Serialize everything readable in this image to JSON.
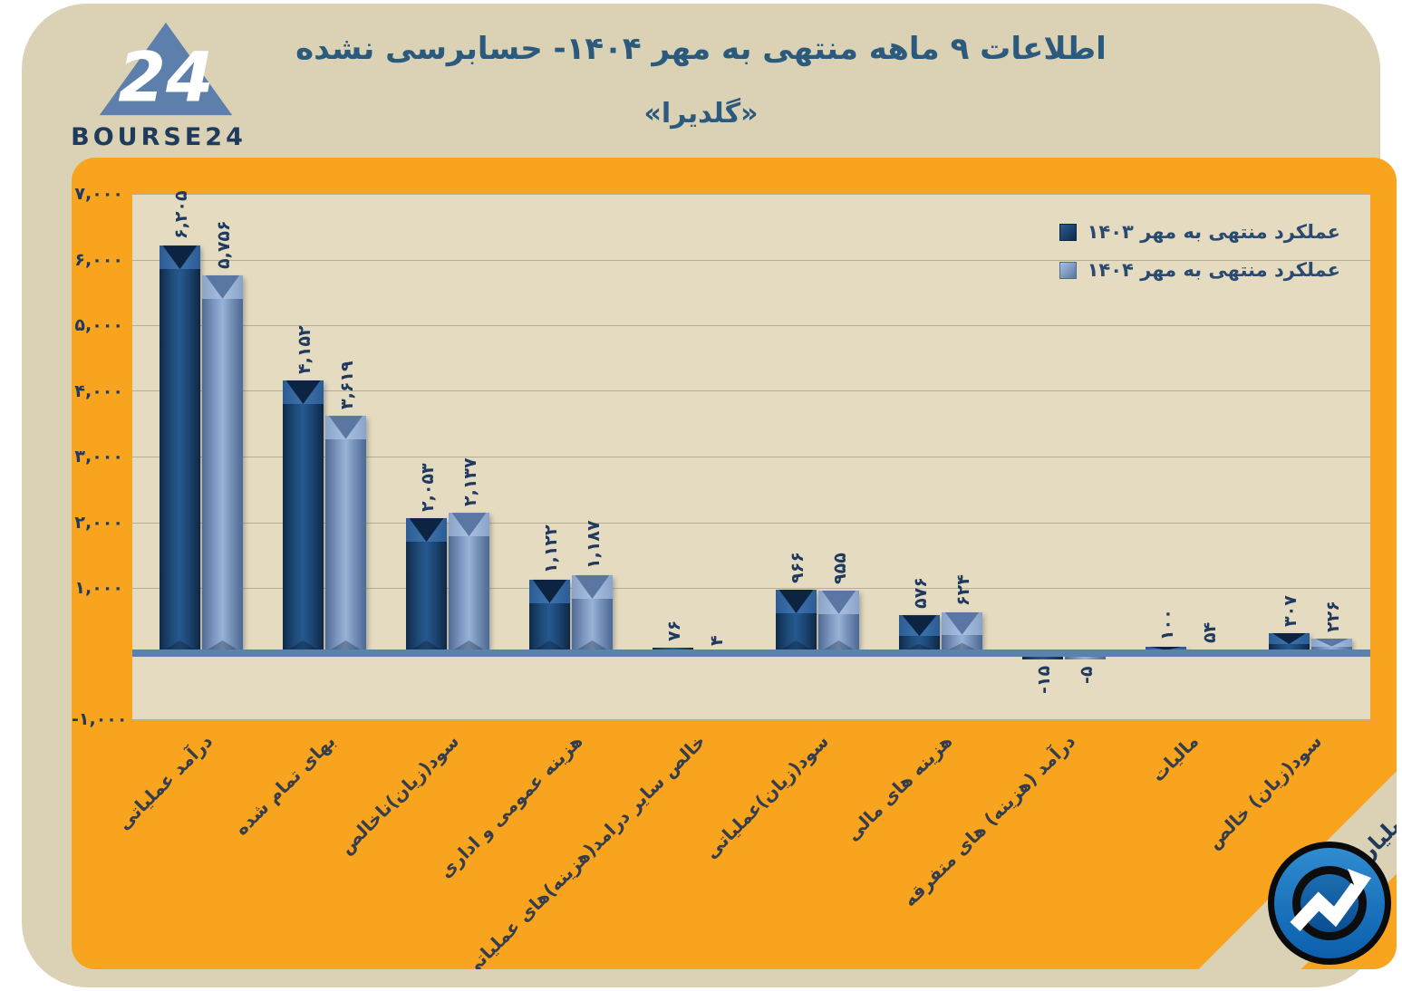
{
  "header": {
    "logo_number": "24",
    "logo_brand": "BOURSE24",
    "title": "اطلاعات ۹ ماهه منتهی به مهر  ۱۴۰۴- حسابرسی نشده",
    "subtitle": "«گلدیرا»"
  },
  "corner_note": "ارقام به میلیارد تومان",
  "colors": {
    "card_beige": "#DBD1B5",
    "panel_orange": "#F8A41E",
    "plot_beige": "#E5DBC0",
    "series_1403": "#17375E",
    "series_1404": "#7D99C1",
    "zero_line": "#5B82AD",
    "gridline": "#B5AD96",
    "title_text": "#2B5A7D",
    "axis_text": "#1F3A5E",
    "category_text": "#343D49"
  },
  "chart_data": {
    "type": "bar",
    "title": "اطلاعات ۹ ماهه منتهی به مهر  ۱۴۰۴- حسابرسی نشده «گلدیرا»",
    "units_note": "ارقام به میلیارد تومان",
    "categories": [
      "درآمد عملیاتی",
      "بهای تمام شده",
      "سود(زیان)ناخالص",
      "هزینه عمومی و اداری",
      "خالص سایر درامد(هزینه)های عملیاتی",
      "سود(زیان)عملیاتی",
      "هزینه های مالی",
      "درآمد (هزینه) های متفرقه",
      "مالیات",
      "سود(زیان) خالص"
    ],
    "series": [
      {
        "name": "عملکرد منتهی به مهر ۱۴۰۳",
        "color": "#17375E",
        "values": [
          6205,
          4152,
          2053,
          1122,
          76,
          966,
          576,
          -15,
          100,
          307
        ],
        "labels": [
          "۶,۲۰۵",
          "۴,۱۵۲",
          "۲,۰۵۳",
          "۱,۱۲۲",
          "۷۶",
          "۹۶۶",
          "۵۷۶",
          "-۱۵",
          "۱۰۰",
          "۳۰۷"
        ]
      },
      {
        "name": "عملکرد منتهی به مهر ۱۴۰۴",
        "color": "#7D99C1",
        "values": [
          5756,
          3619,
          2137,
          1187,
          4,
          955,
          624,
          -5,
          54,
          226
        ],
        "labels": [
          "۵,۷۵۶",
          "۳,۶۱۹",
          "۲,۱۳۷",
          "۱,۱۸۷",
          "۴",
          "۹۵۵",
          "۶۲۴",
          "-۵",
          "۵۴",
          "۲۲۶"
        ]
      }
    ],
    "y_ticks": [
      {
        "value": 7000,
        "label": "۷,۰۰۰"
      },
      {
        "value": 6000,
        "label": "۶,۰۰۰"
      },
      {
        "value": 5000,
        "label": "۵,۰۰۰"
      },
      {
        "value": 4000,
        "label": "۴,۰۰۰"
      },
      {
        "value": 3000,
        "label": "۳,۰۰۰"
      },
      {
        "value": 2000,
        "label": "۲,۰۰۰"
      },
      {
        "value": 1000,
        "label": "۱,۰۰۰"
      },
      {
        "value": -1000,
        "label": "-۱,۰۰۰"
      }
    ],
    "ylim": [
      -1000,
      7000
    ],
    "grid": true,
    "legend_position": "top-right"
  }
}
